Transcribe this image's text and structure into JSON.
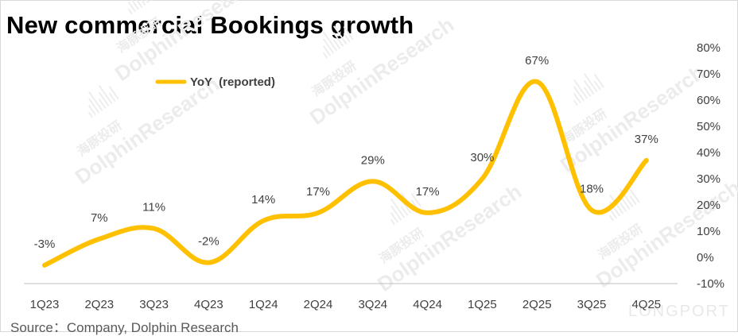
{
  "title": "New commercial Bookings growth",
  "source": "Source：Company, Dolphin Research",
  "watermark": {
    "brand": "DolphinResearch",
    "cjk": "海豚投研",
    "logo": "LONGPORT"
  },
  "chart_data": {
    "type": "line",
    "title": "New commercial Bookings growth",
    "categories": [
      "1Q23",
      "2Q23",
      "3Q23",
      "4Q23",
      "1Q24",
      "2Q24",
      "3Q24",
      "4Q24",
      "1Q25",
      "2Q25",
      "3Q25",
      "4Q25"
    ],
    "series": [
      {
        "name": "YoY  (reported)",
        "values": [
          -3,
          7,
          11,
          -2,
          14,
          17,
          29,
          17,
          30,
          67,
          18,
          37
        ],
        "labels": [
          "-3%",
          "7%",
          "11%",
          "-2%",
          "14%",
          "17%",
          "29%",
          "17%",
          "30%",
          "67%",
          "18%",
          "37%"
        ],
        "color": "#ffc000"
      }
    ],
    "y_axis": {
      "position": "right",
      "ylim": [
        -10,
        80
      ],
      "ticks": [
        -10,
        0,
        10,
        20,
        30,
        40,
        50,
        60,
        70,
        80
      ],
      "tick_labels": [
        "-10%",
        "0%",
        "10%",
        "20%",
        "30%",
        "40%",
        "50%",
        "60%",
        "70%",
        "80%"
      ]
    },
    "smooth": true,
    "grid": false,
    "legend_position": "top-left"
  }
}
